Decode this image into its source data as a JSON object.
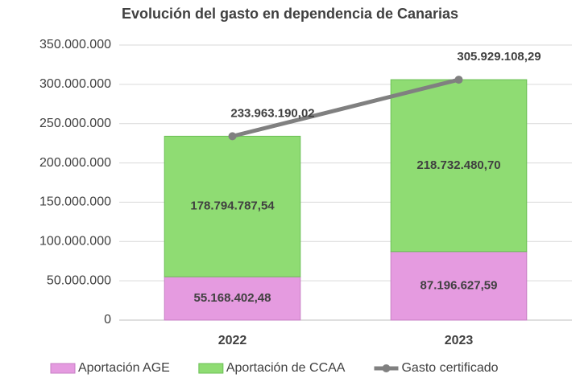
{
  "chart_data": {
    "type": "bar",
    "stacked": true,
    "title": "Evolución del gasto en dependencia de Canarias",
    "categories": [
      "2022",
      "2023"
    ],
    "series": [
      {
        "name": "Aportación AGE",
        "type": "bar",
        "color": "#e59be0",
        "values": [
          55168402.48,
          87196627.59
        ],
        "value_labels": [
          "55.168.402,48",
          "87.196.627,59"
        ]
      },
      {
        "name": "Aportación de CCAA",
        "type": "bar",
        "color": "#8fdc73",
        "values": [
          178794787.54,
          218732480.7
        ],
        "value_labels": [
          "178.794.787,54",
          "218.732.480,70"
        ]
      },
      {
        "name": "Gasto certificado",
        "type": "line",
        "color": "#808080",
        "values": [
          233963190.02,
          305929108.29
        ],
        "value_labels": [
          "233.963.190,02",
          "305.929.108,29"
        ]
      }
    ],
    "ylim": [
      0,
      350000000
    ],
    "yticks": [
      0,
      {
        "value": 50000000,
        "label": "50.000.000"
      },
      {
        "value": 100000000,
        "label": "100.000.000"
      },
      {
        "value": 150000000,
        "label": "150.000.000"
      },
      {
        "value": 200000000,
        "label": "200.000.000"
      },
      {
        "value": 250000000,
        "label": "250.000.000"
      },
      {
        "value": 300000000,
        "label": "300.000.000"
      },
      {
        "value": 350000000,
        "label": "350.000.000"
      }
    ],
    "grid": true,
    "legend": "bottom"
  }
}
